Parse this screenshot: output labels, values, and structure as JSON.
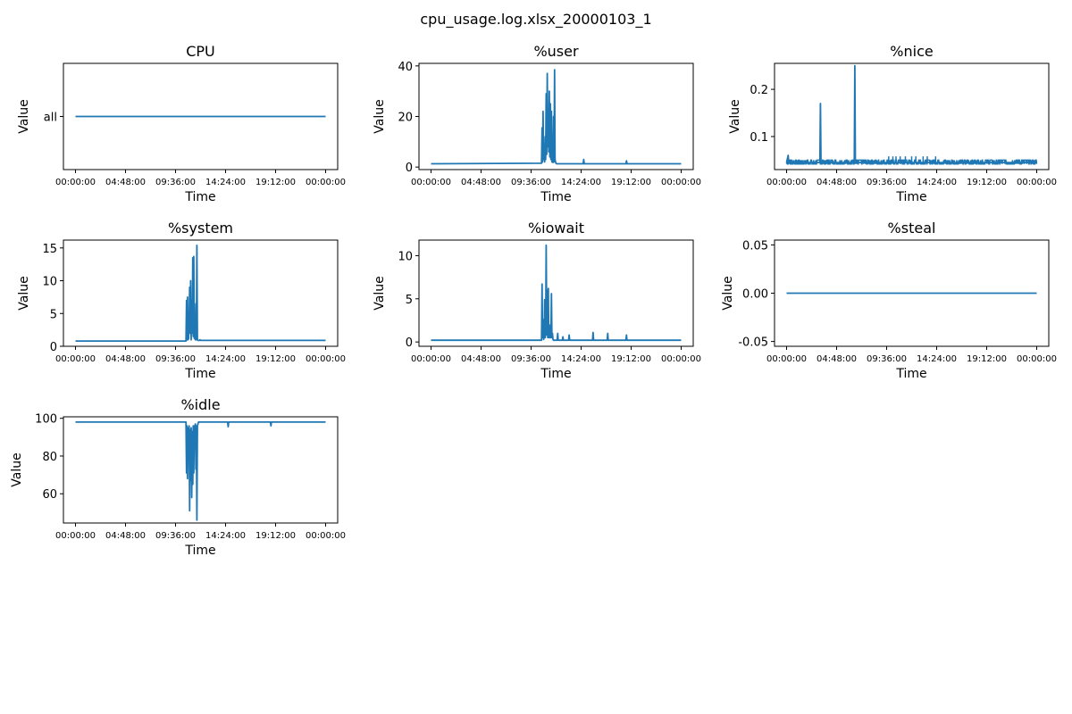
{
  "figure": {
    "title": "cpu_usage.log.xlsx_20000103_1"
  },
  "time_ticks": [
    "00:00:00",
    "04:48:00",
    "09:36:00",
    "14:24:00",
    "19:12:00",
    "00:00:00"
  ],
  "chart_data": [
    {
      "id": "cpu",
      "type": "line",
      "title": "CPU",
      "xlabel": "Time",
      "ylabel": "Value",
      "categorical_y": [
        "all"
      ],
      "yticks": [
        "all"
      ],
      "series": [
        {
          "x": [
            0,
            24
          ],
          "y": [
            0,
            0
          ]
        }
      ]
    },
    {
      "id": "user",
      "type": "line",
      "title": "%user",
      "xlabel": "Time",
      "ylabel": "Value",
      "ylim": [
        -1.0,
        41.0
      ],
      "yticks": [
        0,
        20,
        40
      ],
      "series": [
        {
          "x": [
            0,
            10.6,
            10.65,
            10.7,
            10.75,
            10.8,
            10.85,
            10.9,
            10.95,
            11.0,
            11.05,
            11.1,
            11.15,
            11.2,
            11.25,
            11.3,
            11.35,
            11.4,
            11.45,
            11.5,
            11.55,
            11.6,
            11.65,
            11.7,
            11.75,
            11.8,
            11.85,
            11.9,
            11.95,
            12.0,
            12.05,
            12.1,
            12.15,
            12.2,
            12.25,
            12.3,
            12.35,
            12.4,
            14.6,
            14.65,
            14.7,
            18.7,
            18.75,
            18.8,
            24
          ],
          "y": [
            1.3,
            1.5,
            15.5,
            2,
            22,
            3,
            6,
            2,
            12,
            3,
            29,
            5,
            37,
            8,
            20,
            6,
            30,
            4,
            25,
            3,
            22,
            2,
            12,
            1.8,
            20,
            2,
            38.5,
            3,
            2,
            1.4,
            1.3,
            1.3,
            1.3,
            1.3,
            1.3,
            1.3,
            1.3,
            1.3,
            1.3,
            3,
            1.3,
            1.3,
            2.5,
            1.3,
            1.3
          ]
        }
      ]
    },
    {
      "id": "nice",
      "type": "line",
      "title": "%nice",
      "xlabel": "Time",
      "ylabel": "Value",
      "ylim": [
        0.03,
        0.255
      ],
      "yticks": [
        0.1,
        0.2
      ],
      "series": [
        {
          "x": [
            0,
            0.15,
            0.2,
            0.25,
            3.2,
            3.25,
            3.3,
            6.5,
            6.55,
            6.6,
            24
          ],
          "y": [
            0.045,
            0.06,
            0.045,
            0.045,
            0.045,
            0.17,
            0.045,
            0.045,
            0.25,
            0.045,
            0.045
          ]
        }
      ],
      "noise_band": [
        0.042,
        0.05
      ]
    },
    {
      "id": "system",
      "type": "line",
      "title": "%system",
      "xlabel": "Time",
      "ylabel": "Value",
      "ylim": [
        0,
        16.2
      ],
      "yticks": [
        0,
        5,
        10,
        15
      ],
      "series": [
        {
          "x": [
            0,
            10.6,
            10.65,
            10.7,
            10.75,
            10.8,
            10.85,
            10.9,
            10.95,
            11.0,
            11.05,
            11.1,
            11.15,
            11.2,
            11.25,
            11.3,
            11.35,
            11.4,
            11.45,
            11.5,
            11.55,
            11.6,
            11.65,
            11.7,
            11.75,
            11.8,
            11.85,
            11.9,
            11.95,
            12.0,
            12.05,
            24
          ],
          "y": [
            0.8,
            0.8,
            7,
            1,
            7.5,
            1,
            1.2,
            3,
            9,
            2,
            10,
            1,
            7,
            2,
            13.5,
            1.5,
            13.7,
            1.2,
            3,
            1,
            6.5,
            1,
            15.4,
            1,
            0.9,
            0.9,
            0.9,
            0.9,
            1.0,
            0.9,
            0.9,
            0.9
          ]
        }
      ]
    },
    {
      "id": "iowait",
      "type": "line",
      "title": "%iowait",
      "xlabel": "Time",
      "ylabel": "Value",
      "ylim": [
        -0.5,
        11.8
      ],
      "yticks": [
        0,
        5,
        10
      ],
      "series": [
        {
          "x": [
            0,
            10.6,
            10.65,
            10.7,
            10.75,
            10.8,
            10.85,
            10.9,
            10.95,
            11.0,
            11.05,
            11.1,
            11.15,
            11.2,
            11.25,
            11.3,
            11.35,
            11.4,
            11.45,
            11.5,
            11.55,
            11.6,
            11.65,
            11.7,
            11.75,
            12.1,
            12.15,
            12.2,
            12.6,
            12.65,
            12.7,
            13.2,
            13.25,
            13.3,
            15.5,
            15.55,
            15.6,
            16.9,
            16.95,
            17.0,
            18.7,
            18.75,
            18.8,
            24
          ],
          "y": [
            0.2,
            0.2,
            6.7,
            0.5,
            2.6,
            0.3,
            0.5,
            4.9,
            0.5,
            1.0,
            11.2,
            0.8,
            6.0,
            0.5,
            6.2,
            0.5,
            2.0,
            0.5,
            1.8,
            0.5,
            5.6,
            0.5,
            1.0,
            0.3,
            0.2,
            0.2,
            1.0,
            0.2,
            0.2,
            0.6,
            0.2,
            0.2,
            0.8,
            0.2,
            0.2,
            1.1,
            0.2,
            0.2,
            1.0,
            0.2,
            0.2,
            0.8,
            0.2,
            0.2
          ]
        }
      ]
    },
    {
      "id": "steal",
      "type": "line",
      "title": "%steal",
      "xlabel": "Time",
      "ylabel": "Value",
      "ylim": [
        -0.055,
        0.055
      ],
      "yticks": [
        "-0.05",
        "0.00",
        "0.05"
      ],
      "ytick_values": [
        -0.05,
        0,
        0.05
      ],
      "series": [
        {
          "x": [
            0,
            24
          ],
          "y": [
            0,
            0
          ]
        }
      ]
    },
    {
      "id": "idle",
      "type": "line",
      "title": "%idle",
      "xlabel": "Time",
      "ylabel": "Value",
      "ylim": [
        44.5,
        100.8
      ],
      "yticks": [
        60,
        80,
        100
      ],
      "series": [
        {
          "x": [
            0,
            10.6,
            10.65,
            10.7,
            10.75,
            10.8,
            10.85,
            10.9,
            10.95,
            11.0,
            11.05,
            11.1,
            11.15,
            11.2,
            11.25,
            11.3,
            11.35,
            11.4,
            11.45,
            11.5,
            11.55,
            11.6,
            11.65,
            11.7,
            11.75,
            11.8,
            11.85,
            14.6,
            14.65,
            14.7,
            18.7,
            18.75,
            18.8,
            24
          ],
          "y": [
            98.0,
            98.0,
            71,
            96,
            68,
            95,
            78,
            96,
            51,
            94,
            67,
            95,
            58,
            93,
            65,
            96,
            71,
            96,
            94,
            97,
            73,
            96,
            46,
            96,
            97,
            98,
            98,
            98,
            95.5,
            98,
            98,
            96,
            98,
            98
          ]
        }
      ]
    }
  ]
}
